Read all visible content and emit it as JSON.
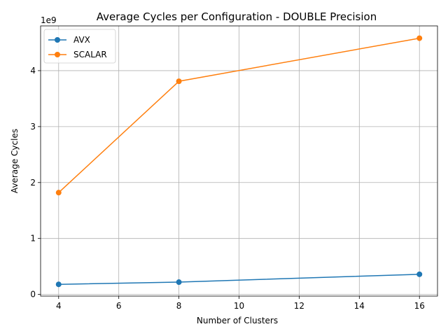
{
  "chart_data": {
    "type": "line",
    "title": "Average Cycles per Configuration - DOUBLE Precision",
    "xlabel": "Number of Clusters",
    "ylabel": "Average Cycles",
    "y_offset_label": "1e9",
    "y_scale_factor": 1000000000,
    "x": [
      4,
      8,
      16
    ],
    "xlim": [
      3.4,
      16.6
    ],
    "ylim": [
      -30000000,
      4800000000
    ],
    "x_ticks": [
      4,
      6,
      8,
      10,
      12,
      14,
      16
    ],
    "y_ticks": [
      0,
      1,
      2,
      3,
      4
    ],
    "grid": true,
    "legend_position": "top-left",
    "series": [
      {
        "name": "AVX",
        "color": "#1f77b4",
        "values": [
          180000000,
          220000000,
          360000000
        ]
      },
      {
        "name": "SCALAR",
        "color": "#ff7f0e",
        "values": [
          1820000000,
          3810000000,
          4580000000
        ]
      }
    ]
  }
}
